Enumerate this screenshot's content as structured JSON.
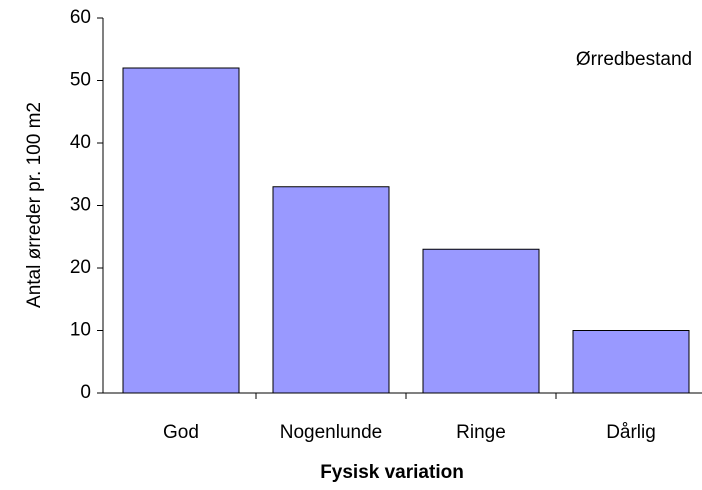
{
  "chart_data": {
    "type": "bar",
    "annotation": "Ørredbestand",
    "x_label": "Fysisk variation",
    "y_label": "Antal ørreder pr. 100 m2",
    "categories": [
      "God",
      "Nogenlunde",
      "Ringe",
      "Dårlig"
    ],
    "values": [
      52,
      33,
      23,
      10
    ],
    "color": "#9999ff",
    "ylim": [
      0,
      60
    ],
    "yticks": [
      0,
      10,
      20,
      30,
      40,
      50,
      60
    ],
    "grid": false
  }
}
